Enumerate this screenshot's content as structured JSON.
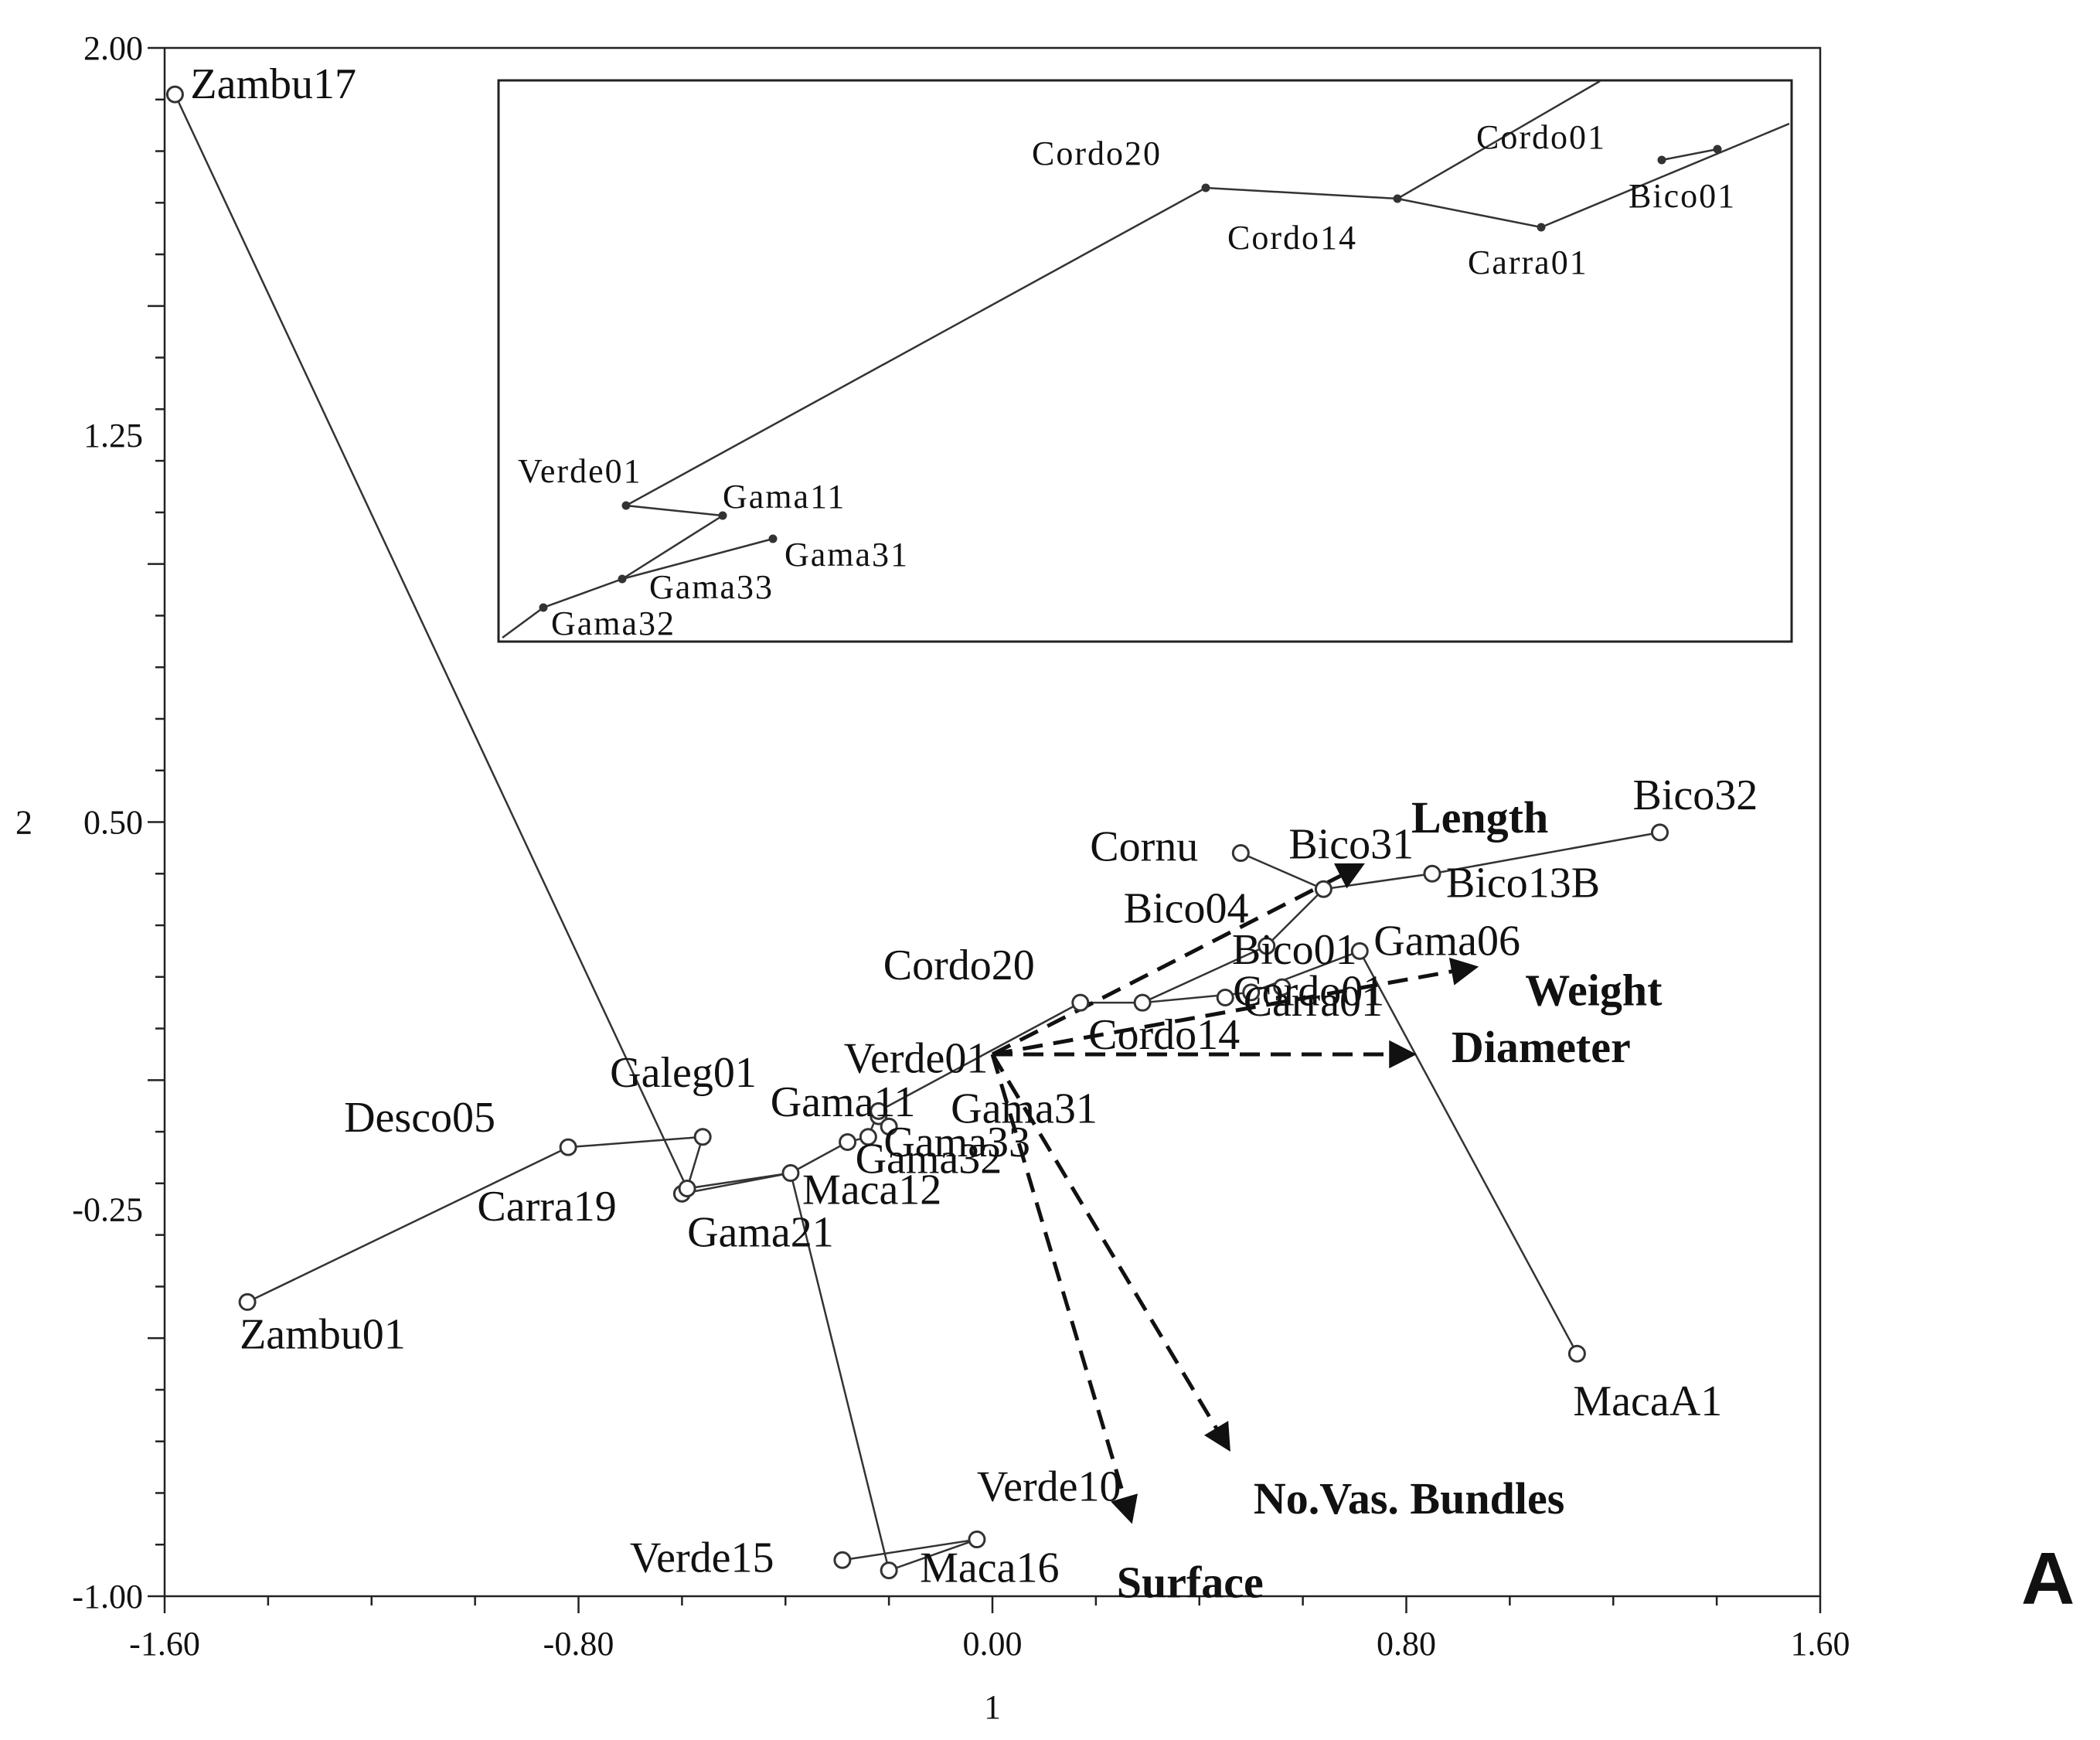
{
  "chart_data": {
    "type": "scatter",
    "title": "",
    "xlabel": "1",
    "ylabel": "2",
    "xlim": [
      -1.6,
      1.6
    ],
    "ylim": [
      -1.0,
      2.0
    ],
    "x_ticks": [
      "-1.60",
      "-0.80",
      "0.00",
      "0.80",
      "1.60"
    ],
    "y_ticks": [
      "2.00",
      "1.25",
      "0.50",
      "-0.25",
      "-1.00"
    ],
    "grid": false,
    "panel_label": "A",
    "points": [
      {
        "label": "Zambu17",
        "x": -1.58,
        "y": 1.91
      },
      {
        "label": "Zambu01",
        "x": -1.44,
        "y": -0.43
      },
      {
        "label": "Desco05",
        "x": -0.82,
        "y": -0.13
      },
      {
        "label": "Galeg01",
        "x": -0.56,
        "y": -0.11
      },
      {
        "label": "Carra19",
        "x": -0.6,
        "y": -0.22
      },
      {
        "label": "Gama21",
        "x": -0.59,
        "y": -0.21
      },
      {
        "label": "Maca12",
        "x": -0.39,
        "y": -0.18
      },
      {
        "label": "Gama32",
        "x": -0.28,
        "y": -0.12
      },
      {
        "label": "Gama33",
        "x": -0.24,
        "y": -0.11
      },
      {
        "label": "Gama11",
        "x": -0.22,
        "y": -0.07
      },
      {
        "label": "Gama31",
        "x": -0.2,
        "y": -0.09
      },
      {
        "label": "Verde01",
        "x": -0.22,
        "y": -0.06
      },
      {
        "label": "Cordo20",
        "x": 0.17,
        "y": 0.15
      },
      {
        "label": "Cordo14",
        "x": 0.29,
        "y": 0.15
      },
      {
        "label": "Carra01",
        "x": 0.5,
        "y": 0.17
      },
      {
        "label": "Cordo01",
        "x": 0.45,
        "y": 0.16
      },
      {
        "label": "Bico01",
        "x": 0.56,
        "y": 0.18
      },
      {
        "label": "Bico04",
        "x": 0.53,
        "y": 0.26
      },
      {
        "label": "Cornu",
        "x": 0.48,
        "y": 0.44
      },
      {
        "label": "Bico31",
        "x": 0.64,
        "y": 0.37
      },
      {
        "label": "Bico13B",
        "x": 0.85,
        "y": 0.4
      },
      {
        "label": "Bico32",
        "x": 1.29,
        "y": 0.48
      },
      {
        "label": "Gama06",
        "x": 0.71,
        "y": 0.25
      },
      {
        "label": "MacaA1",
        "x": 1.13,
        "y": -0.53
      },
      {
        "label": "Maca16",
        "x": -0.2,
        "y": -0.95
      },
      {
        "label": "Verde10",
        "x": -0.03,
        "y": -0.89
      },
      {
        "label": "Verde15",
        "x": -0.29,
        "y": -0.93
      }
    ],
    "path": [
      "Zambu17",
      "Gama21",
      "Galeg01",
      "Desco05",
      "Zambu01"
    ],
    "path_main": [
      "Carra19",
      "Maca12",
      "Gama32",
      "Gama33",
      "Verde01",
      "Cordo20",
      "Cordo14",
      "Carra01",
      "Gama06",
      "MacaA1"
    ],
    "vectors": [
      {
        "label": "Length",
        "x": 0.72,
        "y": 0.42
      },
      {
        "label": "Weight",
        "x": 0.94,
        "y": 0.22
      },
      {
        "label": "Diameter",
        "x": 0.82,
        "y": 0.05
      },
      {
        "label": "No.Vas. Bundles",
        "x": 0.46,
        "y": -0.72
      },
      {
        "label": "Surface",
        "x": 0.27,
        "y": -0.86
      }
    ],
    "inset_labels": [
      "Cordo20",
      "Cordo14",
      "Cordo01",
      "Carra01",
      "Bico01",
      "Verde01",
      "Gama11",
      "Gama31",
      "Gama33",
      "Gama32"
    ]
  }
}
